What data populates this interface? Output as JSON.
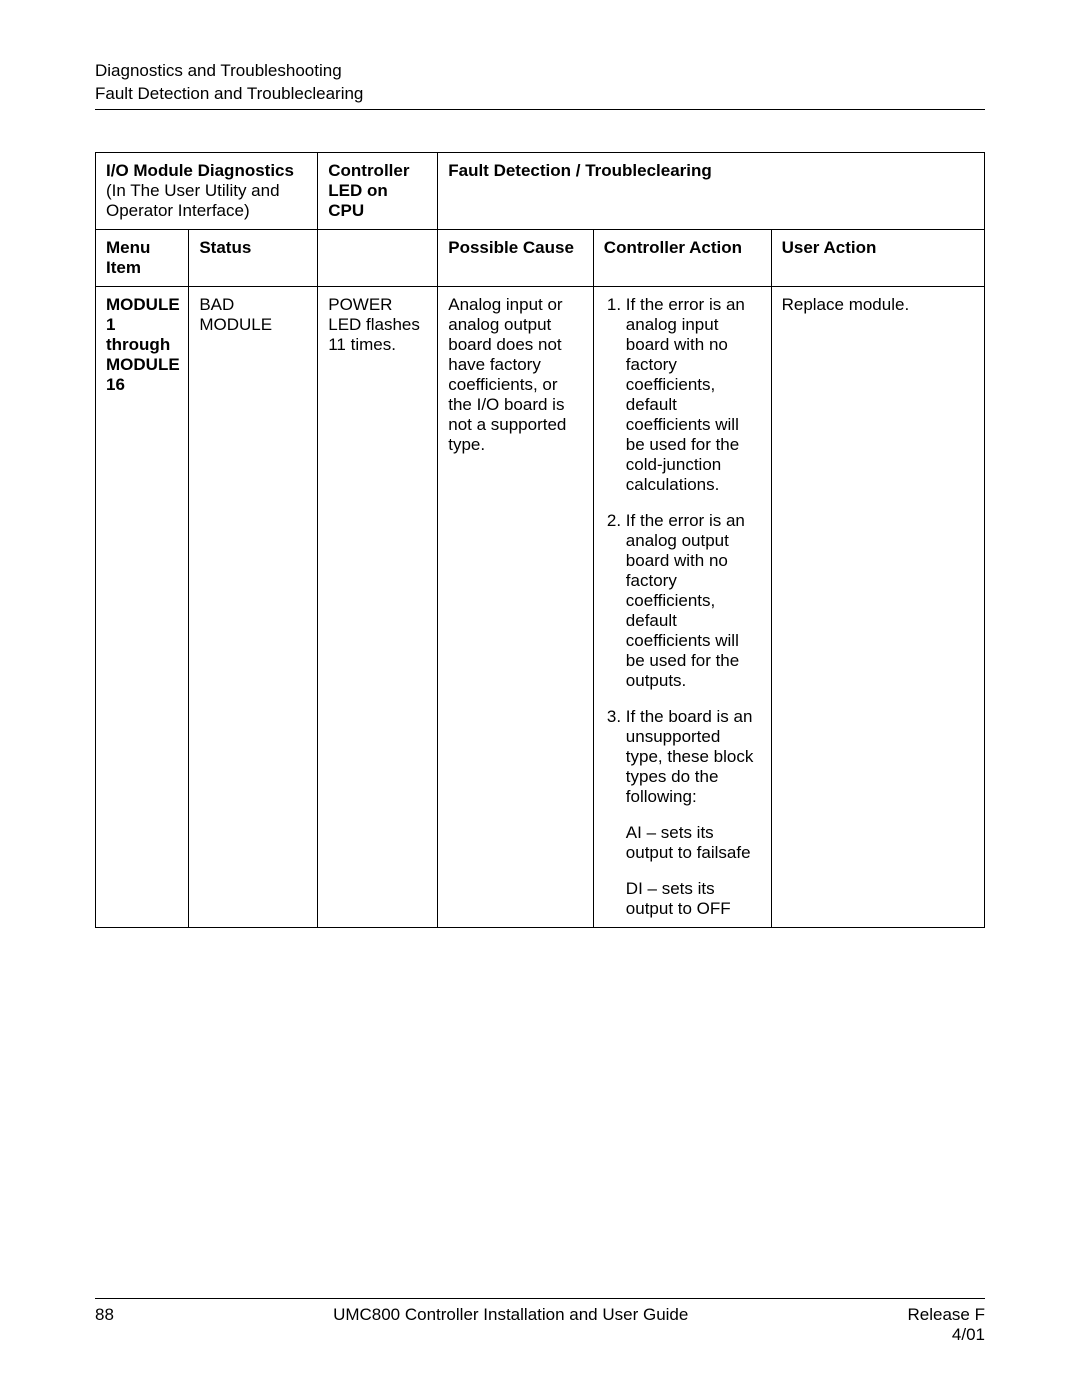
{
  "header": {
    "line1": "Diagnostics and Troubleshooting",
    "line2": "Fault Detection and Troubleclearing"
  },
  "table": {
    "head": {
      "diagnostics_title": "I/O Module Diagnostics",
      "diagnostics_sub": "(In The User Utility and Operator Interface)",
      "controller_led": "Controller LED on CPU",
      "fault_detection": "Fault Detection / Troubleclearing",
      "menu_item": "Menu Item",
      "status": "Status",
      "possible_cause": "Possible Cause",
      "controller_action": "Controller Action",
      "user_action": "User Action"
    },
    "row": {
      "menu_item": "MODULE 1 through MODULE 16",
      "status": "BAD MODULE",
      "led": "POWER LED flashes 11 times.",
      "possible_cause": "Analog input or analog output board does not have factory coefficients, or the I/O board is not a supported type.",
      "controller_action": {
        "items": [
          "If the error is an analog input board with no factory coefficients, default coefficients will be used for the cold-junction calculations.",
          "If the error is an analog output board with no factory coefficients, default coefficients will be used for the outputs.",
          "If the board is an unsupported type, these block types do the following:"
        ],
        "extras": [
          "AI – sets its output to failsafe",
          "DI – sets its output to OFF"
        ]
      },
      "user_action": "Replace module."
    }
  },
  "footer": {
    "page_number": "88",
    "doc_title": "UMC800 Controller Installation and User Guide",
    "release": "Release F",
    "date": "4/01"
  }
}
